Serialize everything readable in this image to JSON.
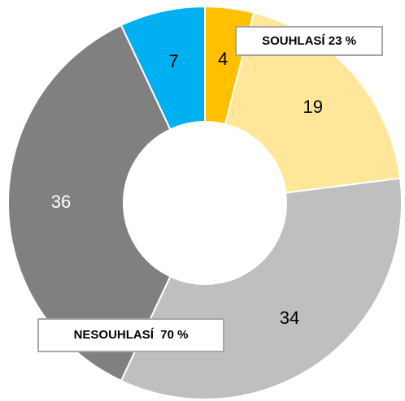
{
  "chart_data": {
    "type": "donut",
    "categories": [
      null,
      null,
      null,
      null,
      null
    ],
    "values": [
      4,
      19,
      34,
      36,
      7
    ],
    "colors": [
      "#FFC000",
      "#FFE699",
      "#BFBFBF",
      "#808080",
      "#00B0F0"
    ],
    "label_colors": [
      "#000000",
      "#000000",
      "#000000",
      "#FFFFFF",
      "#000000"
    ],
    "annotations": [
      "SOUHLASÍ 23 %",
      "NESOUHLASÍ  70 %"
    ]
  }
}
